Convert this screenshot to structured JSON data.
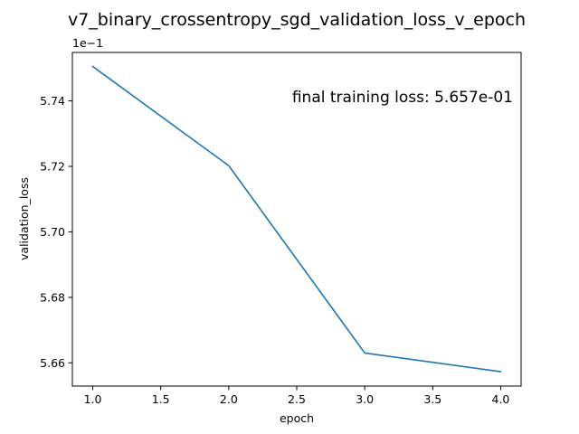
{
  "chart_data": {
    "type": "line",
    "title": "v7_binary_crossentropy_sgd_validation_loss_v_epoch",
    "xlabel": "epoch",
    "ylabel": "validation_loss",
    "y_offset_label": "1e−1",
    "annotation": "final training loss: 5.657e-01",
    "x": [
      1.0,
      2.0,
      3.0,
      4.0
    ],
    "series": [
      {
        "values": [
          0.57505,
          0.57202,
          0.5663,
          0.56573
        ],
        "color": "#1f77b4"
      }
    ],
    "xlim": [
      0.85,
      4.15
    ],
    "ylim": [
      0.56529,
      0.57548
    ],
    "x_ticks": [
      1.0,
      1.5,
      2.0,
      2.5,
      3.0,
      3.5,
      4.0
    ],
    "x_tick_labels": [
      "1.0",
      "1.5",
      "2.0",
      "2.5",
      "3.0",
      "3.5",
      "4.0"
    ],
    "y_ticks": [
      0.566,
      0.568,
      0.57,
      0.572,
      0.574
    ],
    "y_tick_labels": [
      "5.66",
      "5.68",
      "5.70",
      "5.72",
      "5.74"
    ],
    "grid": false,
    "legend": "none"
  }
}
